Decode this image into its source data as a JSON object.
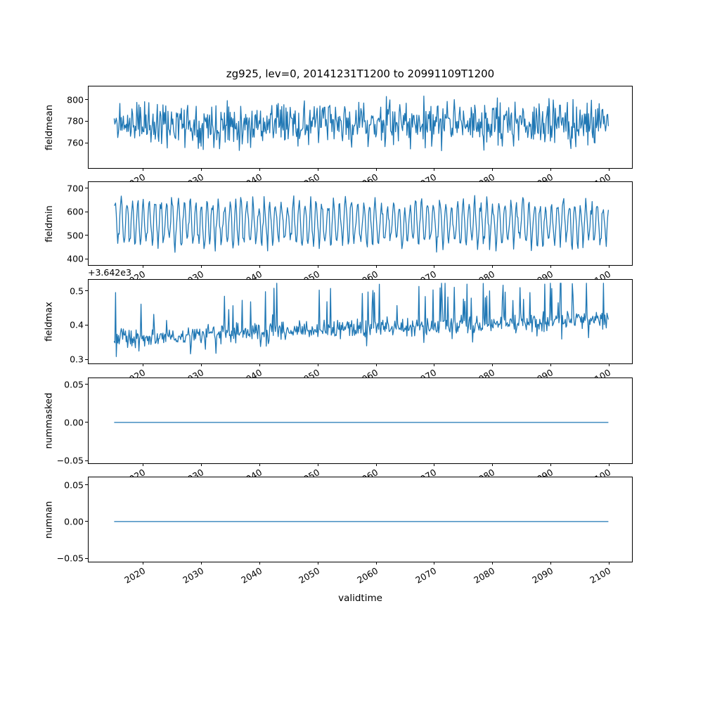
{
  "figure": {
    "title": "zg925, lev=0, 20141231T1200 to 20991109T1200",
    "xlabel": "validtime",
    "line_color": "#1f77b4",
    "background": "#ffffff",
    "x_data_range": [
      2015.0,
      2099.9
    ],
    "xticks": [
      {
        "v": 2020,
        "label": "2020"
      },
      {
        "v": 2030,
        "label": "2030"
      },
      {
        "v": 2040,
        "label": "2040"
      },
      {
        "v": 2050,
        "label": "2050"
      },
      {
        "v": 2060,
        "label": "2060"
      },
      {
        "v": 2070,
        "label": "2070"
      },
      {
        "v": 2080,
        "label": "2080"
      },
      {
        "v": 2090,
        "label": "2090"
      },
      {
        "v": 2100,
        "label": "2100"
      }
    ]
  },
  "chart_data": [
    {
      "type": "line",
      "ylabel": "fieldmean",
      "yticks": [
        {
          "v": 760,
          "label": "760"
        },
        {
          "v": 780,
          "label": "780"
        },
        {
          "v": 800,
          "label": "800"
        }
      ],
      "ylim": [
        737,
        812
      ],
      "series": [
        {
          "name": "fieldmean",
          "n": 700,
          "summary": {
            "approx_mean": 778,
            "approx_min": 747,
            "approx_max": 807,
            "behavior": "stationary high-frequency noise"
          },
          "gen": {
            "kind": "noise",
            "seed": 11,
            "base": 778,
            "sigma": 10,
            "clamp": [
              747,
              807.5
            ]
          }
        }
      ]
    },
    {
      "type": "line",
      "ylabel": "fieldmin",
      "yticks": [
        {
          "v": 400,
          "label": "400"
        },
        {
          "v": 500,
          "label": "500"
        },
        {
          "v": 600,
          "label": "600"
        },
        {
          "v": 700,
          "label": "700"
        }
      ],
      "ylim": [
        374,
        726
      ],
      "series": [
        {
          "name": "fieldmin",
          "n": 700,
          "summary": {
            "approx_mean": 555,
            "approx_min": 392,
            "approx_max": 700,
            "behavior": "strong quasi-annual oscillation"
          },
          "gen": {
            "kind": "seasonal",
            "seed": 7,
            "base": 552,
            "amp": 104,
            "period": 8.2,
            "noise": 26,
            "clamp": [
              390,
              700
            ]
          }
        }
      ]
    },
    {
      "type": "line",
      "ylabel": "fieldmax",
      "offset_text": "+3.642e3",
      "y_offset": 3642,
      "yticks": [
        {
          "v": 0.3,
          "label": "0.3"
        },
        {
          "v": 0.4,
          "label": "0.4"
        },
        {
          "v": 0.5,
          "label": "0.5"
        }
      ],
      "ylim": [
        0.288,
        0.532
      ],
      "series": [
        {
          "name": "fieldmax",
          "n": 700,
          "summary": {
            "approx_min": 3642.31,
            "approx_max": 3642.52,
            "behavior": "noisy with slight upward trend and upward spikes"
          },
          "gen": {
            "kind": "trend",
            "seed": 23,
            "base": 0.363,
            "trend": 0.055,
            "noise": 0.016,
            "clamp": [
              0.308,
              0.522
            ]
          }
        }
      ]
    },
    {
      "type": "line",
      "ylabel": "nummasked",
      "yticks": [
        {
          "v": -0.05,
          "label": "−0.05"
        },
        {
          "v": 0,
          "label": "0.00"
        },
        {
          "v": 0.05,
          "label": "0.05"
        }
      ],
      "ylim": [
        -0.0536,
        0.0581
      ],
      "series": [
        {
          "name": "nummasked",
          "n": 2,
          "summary": {
            "constant_value": 0.0
          },
          "gen": {
            "kind": "constant",
            "seed": 1,
            "value": 0
          }
        }
      ]
    },
    {
      "type": "line",
      "ylabel": "numnan",
      "yticks": [
        {
          "v": -0.05,
          "label": "−0.05"
        },
        {
          "v": 0,
          "label": "0.00"
        },
        {
          "v": 0.05,
          "label": "0.05"
        }
      ],
      "ylim": [
        -0.0546,
        0.0602
      ],
      "series": [
        {
          "name": "numnan",
          "n": 2,
          "summary": {
            "constant_value": 0.0
          },
          "gen": {
            "kind": "constant",
            "seed": 2,
            "value": 0
          }
        }
      ]
    }
  ]
}
